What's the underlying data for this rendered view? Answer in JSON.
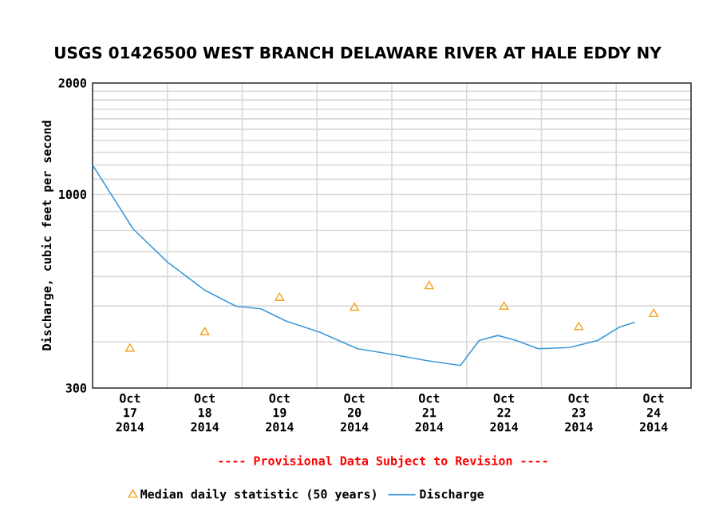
{
  "chart_data": {
    "type": "line",
    "title": "USGS 01426500 WEST BRANCH DELAWARE RIVER AT HALE EDDY NY",
    "ylabel": "Discharge, cubic feet per second",
    "annotations": [
      "---- Provisional Data Subject to Revision ----"
    ],
    "log": "y",
    "grid": true,
    "legend": "bottom",
    "xlim": [
      "2014-10-17T00:00",
      "2014-10-25T00:00"
    ],
    "xticks": [
      {
        "value": "2014-10-17T12:00",
        "label": "Oct 17 2014"
      },
      {
        "value": "2014-10-18T12:00",
        "label": "Oct 18 2014"
      },
      {
        "value": "2014-10-19T12:00",
        "label": "Oct 19 2014"
      },
      {
        "value": "2014-10-20T12:00",
        "label": "Oct 20 2014"
      },
      {
        "value": "2014-10-21T12:00",
        "label": "Oct 21 2014"
      },
      {
        "value": "2014-10-22T12:00",
        "label": "Oct 22 2014"
      },
      {
        "value": "2014-10-23T12:00",
        "label": "Oct 23 2014"
      },
      {
        "value": "2014-10-24T12:00",
        "label": "Oct 24 2014"
      },
      {
        "value": "2014-10-18T00:00",
        "label": null
      },
      {
        "value": "2014-10-19T00:00",
        "label": null
      },
      {
        "value": "2014-10-20T00:00",
        "label": null
      },
      {
        "value": "2014-10-21T00:00",
        "label": null
      },
      {
        "value": "2014-10-22T00:00",
        "label": null
      },
      {
        "value": "2014-10-23T00:00",
        "label": null
      },
      {
        "value": "2014-10-24T00:00",
        "label": null
      }
    ],
    "ylim": [
      300,
      2000
    ],
    "yticks": [
      300,
      {
        "value": 400,
        "label": null
      },
      {
        "value": 500,
        "label": null
      },
      {
        "value": 600,
        "label": null
      },
      {
        "value": 700,
        "label": null
      },
      {
        "value": 800,
        "label": null
      },
      {
        "value": 900,
        "label": null
      },
      1000,
      {
        "value": 1100,
        "label": null
      },
      {
        "value": 1200,
        "label": null
      },
      {
        "value": 1300,
        "label": null
      },
      {
        "value": 1400,
        "label": null
      },
      {
        "value": 1500,
        "label": null
      },
      {
        "value": 1600,
        "label": null
      },
      {
        "value": 1700,
        "label": null
      },
      {
        "value": 1800,
        "label": null
      },
      {
        "value": 1900,
        "label": null
      },
      2000
    ],
    "series": [
      {
        "name": "Median daily statistic (50 years)",
        "type": "scatter",
        "marker": "triangle",
        "color": "#f5a21d",
        "x": [
          "2014-10-17T12:00",
          "2014-10-18T12:00",
          "2014-10-19T12:00",
          "2014-10-20T12:00",
          "2014-10-21T12:00",
          "2014-10-22T12:00",
          "2014-10-23T12:00",
          "2014-10-24T12:00"
        ],
        "values": [
          383,
          424,
          525,
          494,
          565,
          497,
          438,
          475
        ]
      },
      {
        "name": "Discharge",
        "marker": "none",
        "color": "#3d9ad8",
        "x": [
          "2014-10-17T00:00",
          "2014-10-17T13:00",
          "2014-10-18T00:00",
          "2014-10-18T12:00",
          "2014-10-18T22:00",
          "2014-10-19T06:00",
          "2014-10-19T14:00",
          "2014-10-20T01:00",
          "2014-10-20T13:00",
          "2014-10-21T00:00",
          "2014-10-21T11:00",
          "2014-10-21T22:00",
          "2014-10-22T04:00",
          "2014-10-22T10:00",
          "2014-10-22T16:00",
          "2014-10-22T23:00",
          "2014-10-23T09:00",
          "2014-10-23T18:00",
          "2014-10-24T01:00",
          "2014-10-24T06:00"
        ],
        "values": [
          1201,
          807,
          657,
          551,
          499,
          491,
          455,
          424,
          383,
          370,
          356,
          345,
          403,
          416,
          403,
          383,
          386,
          403,
          438,
          452
        ]
      }
    ]
  }
}
